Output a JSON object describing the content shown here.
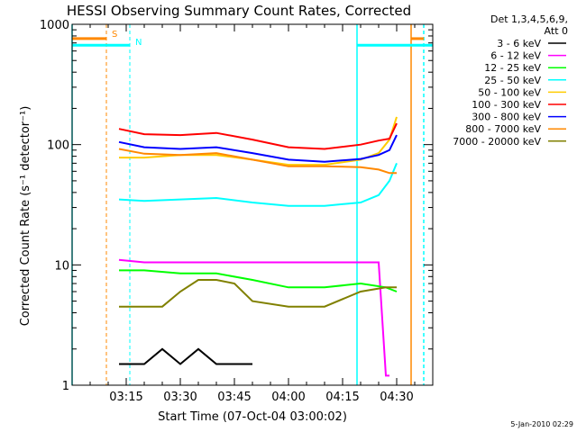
{
  "chart_data": {
    "type": "line",
    "title": "HESSI Observing Summary Count Rates, Corrected",
    "xlabel": "Start Time (07-Oct-04 03:00:02)",
    "ylabel": "Corrected Count Rate (s⁻¹ detector⁻¹)",
    "x_unit": "minutes after 03:00:02",
    "xlim": [
      0,
      100
    ],
    "ylim": [
      1,
      1000
    ],
    "yscale": "log",
    "grid": false,
    "legend_placement": "right, outside plot",
    "legend_header": [
      "Det 1,3,4,5,6,9,",
      "Att 0"
    ],
    "x_ticks": [
      {
        "value": 15,
        "label": "03:15"
      },
      {
        "value": 30,
        "label": "03:30"
      },
      {
        "value": 45,
        "label": "03:45"
      },
      {
        "value": 60,
        "label": "04:00"
      },
      {
        "value": 75,
        "label": "04:15"
      },
      {
        "value": 90,
        "label": "04:30"
      }
    ],
    "y_ticks": [
      {
        "value": 1,
        "label": "1"
      },
      {
        "value": 10,
        "label": "10"
      },
      {
        "value": 100,
        "label": "100"
      },
      {
        "value": 1000,
        "label": "1000"
      }
    ],
    "series": [
      {
        "name": "3 - 6 keV",
        "color": "#000000",
        "x": [
          13,
          20,
          25,
          30,
          35,
          40,
          45,
          50
        ],
        "y": [
          1.5,
          1.5,
          2.0,
          1.5,
          2.0,
          1.5,
          1.5,
          1.5
        ]
      },
      {
        "name": "6 - 12 keV",
        "color": "#ff00ff",
        "x": [
          13,
          20,
          30,
          40,
          50,
          60,
          70,
          80,
          85,
          87,
          88
        ],
        "y": [
          11,
          10.5,
          10.5,
          10.5,
          10.5,
          10.5,
          10.5,
          10.5,
          10.5,
          1.2,
          1.2
        ]
      },
      {
        "name": "12 - 25 keV",
        "color": "#00ff00",
        "x": [
          13,
          20,
          30,
          40,
          50,
          60,
          70,
          80,
          87,
          90
        ],
        "y": [
          9,
          9,
          8.5,
          8.5,
          7.5,
          6.5,
          6.5,
          7,
          6.5,
          6
        ]
      },
      {
        "name": "25 - 50 keV",
        "color": "#00ffff",
        "x": [
          13,
          20,
          30,
          40,
          50,
          60,
          70,
          80,
          85,
          88,
          90
        ],
        "y": [
          35,
          34,
          35,
          36,
          33,
          31,
          31,
          33,
          38,
          50,
          70
        ]
      },
      {
        "name": "50 - 100 keV",
        "color": "#ffcc00",
        "x": [
          13,
          20,
          30,
          40,
          50,
          60,
          70,
          80,
          85,
          88,
          90
        ],
        "y": [
          78,
          78,
          82,
          82,
          75,
          68,
          68,
          75,
          85,
          110,
          170
        ]
      },
      {
        "name": "100 - 300 keV",
        "color": "#ff0000",
        "x": [
          13,
          20,
          30,
          40,
          50,
          60,
          70,
          80,
          85,
          88,
          90
        ],
        "y": [
          135,
          122,
          120,
          125,
          110,
          95,
          92,
          100,
          108,
          112,
          150
        ]
      },
      {
        "name": "300 - 800 keV",
        "color": "#0000ff",
        "x": [
          13,
          20,
          30,
          40,
          50,
          60,
          70,
          80,
          85,
          88,
          90
        ],
        "y": [
          105,
          95,
          92,
          95,
          85,
          75,
          72,
          76,
          82,
          90,
          120
        ]
      },
      {
        "name": "800 - 7000 keV",
        "color": "#ff8800",
        "x": [
          13,
          20,
          30,
          40,
          50,
          60,
          70,
          80,
          85,
          88,
          90
        ],
        "y": [
          92,
          84,
          82,
          85,
          75,
          66,
          66,
          65,
          62,
          58,
          58
        ]
      },
      {
        "name": "7000 - 20000 keV",
        "color": "#808000",
        "x": [
          13,
          20,
          25,
          30,
          35,
          40,
          45,
          50,
          60,
          70,
          80,
          87,
          90
        ],
        "y": [
          4.5,
          4.5,
          4.5,
          6,
          7.5,
          7.5,
          7,
          5,
          4.5,
          4.5,
          6,
          6.5,
          6.5
        ]
      }
    ],
    "annotations": [
      {
        "label": "S",
        "color": "#ff8800",
        "x": 9.5,
        "style": "dashed"
      },
      {
        "label": "N",
        "color": "#00ffff",
        "x": 16,
        "style": "dashed"
      }
    ],
    "vertical_markers": [
      {
        "x": 0,
        "color": "#00ffff",
        "style": "solid"
      },
      {
        "x": 79,
        "color": "#00ffff",
        "style": "solid"
      },
      {
        "x": 94,
        "color": "#ff8800",
        "style": "solid"
      },
      {
        "x": 97.5,
        "color": "#00ffff",
        "style": "dashed"
      }
    ],
    "top_bars": [
      {
        "color": "#ff8800",
        "x0": 0,
        "x1": 9.5,
        "y": 760
      },
      {
        "color": "#00ffff",
        "x0": 0,
        "x1": 16,
        "y": 670
      },
      {
        "color": "#00ffff",
        "x0": 79,
        "x1": 100,
        "y": 670
      },
      {
        "color": "#ff8800",
        "x0": 94,
        "x1": 97.5,
        "y": 760
      }
    ],
    "footer_date": "5-Jan-2010 02:29"
  }
}
